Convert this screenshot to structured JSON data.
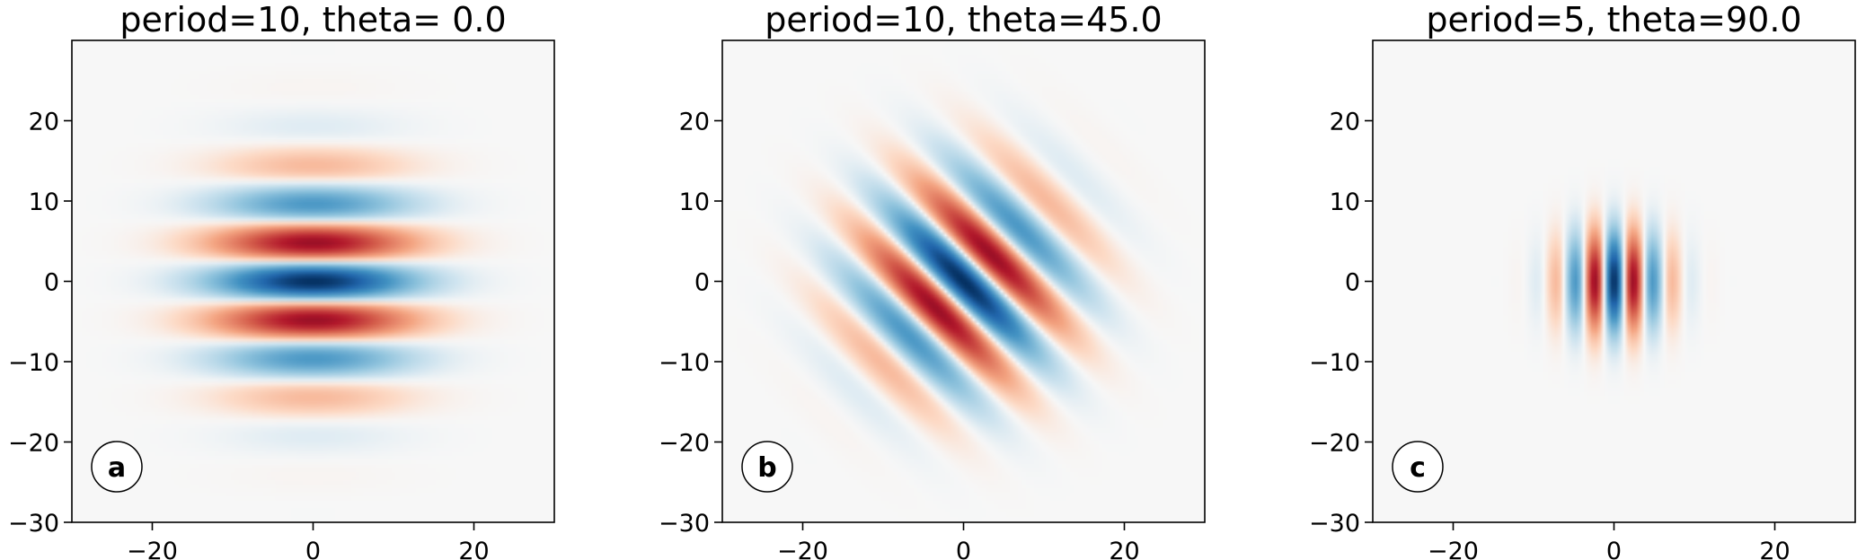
{
  "figure": {
    "colormap": "RdBu_r",
    "colors": {
      "negative_extreme": "#053061",
      "negative_mid": "#2166ac",
      "neutral": "#f7f7f7",
      "positive_mid": "#b2182b",
      "positive_extreme": "#67001f",
      "frame": "#000000"
    }
  },
  "chart_data": [
    {
      "type": "heatmap",
      "title": "period=10, theta= 0.0",
      "panel_label": "a",
      "period": 10,
      "theta_deg": 0.0,
      "sigma": 8,
      "xlim": [
        -30,
        30
      ],
      "ylim": [
        -30,
        30
      ],
      "xticks": [
        -20,
        0,
        20
      ],
      "xtick_labels": [
        "−20",
        "0",
        "20"
      ],
      "yticks": [
        -30,
        -20,
        -10,
        0,
        10,
        20
      ],
      "ytick_labels": [
        "−30",
        "−20",
        "−10",
        "0",
        "10",
        "20"
      ],
      "grid": false
    },
    {
      "type": "heatmap",
      "title": "period=10, theta=45.0",
      "panel_label": "b",
      "period": 10,
      "theta_deg": 45.0,
      "sigma": 8,
      "xlim": [
        -30,
        30
      ],
      "ylim": [
        -30,
        30
      ],
      "xticks": [
        -20,
        0,
        20
      ],
      "xtick_labels": [
        "−20",
        "0",
        "20"
      ],
      "yticks": [
        -30,
        -20,
        -10,
        0,
        10,
        20
      ],
      "ytick_labels": [
        "−30",
        "−20",
        "−10",
        "0",
        "10",
        "20"
      ],
      "grid": false
    },
    {
      "type": "heatmap",
      "title": "period=5, theta=90.0",
      "panel_label": "c",
      "period": 5,
      "theta_deg": 90.0,
      "sigma": 4,
      "xlim": [
        -30,
        30
      ],
      "ylim": [
        -30,
        30
      ],
      "xticks": [
        -20,
        0,
        20
      ],
      "xtick_labels": [
        "−20",
        "0",
        "20"
      ],
      "yticks": [
        -30,
        -20,
        -10,
        0,
        10,
        20
      ],
      "ytick_labels": [
        "−30",
        "−20",
        "−10",
        "0",
        "10",
        "20"
      ],
      "grid": false
    }
  ]
}
